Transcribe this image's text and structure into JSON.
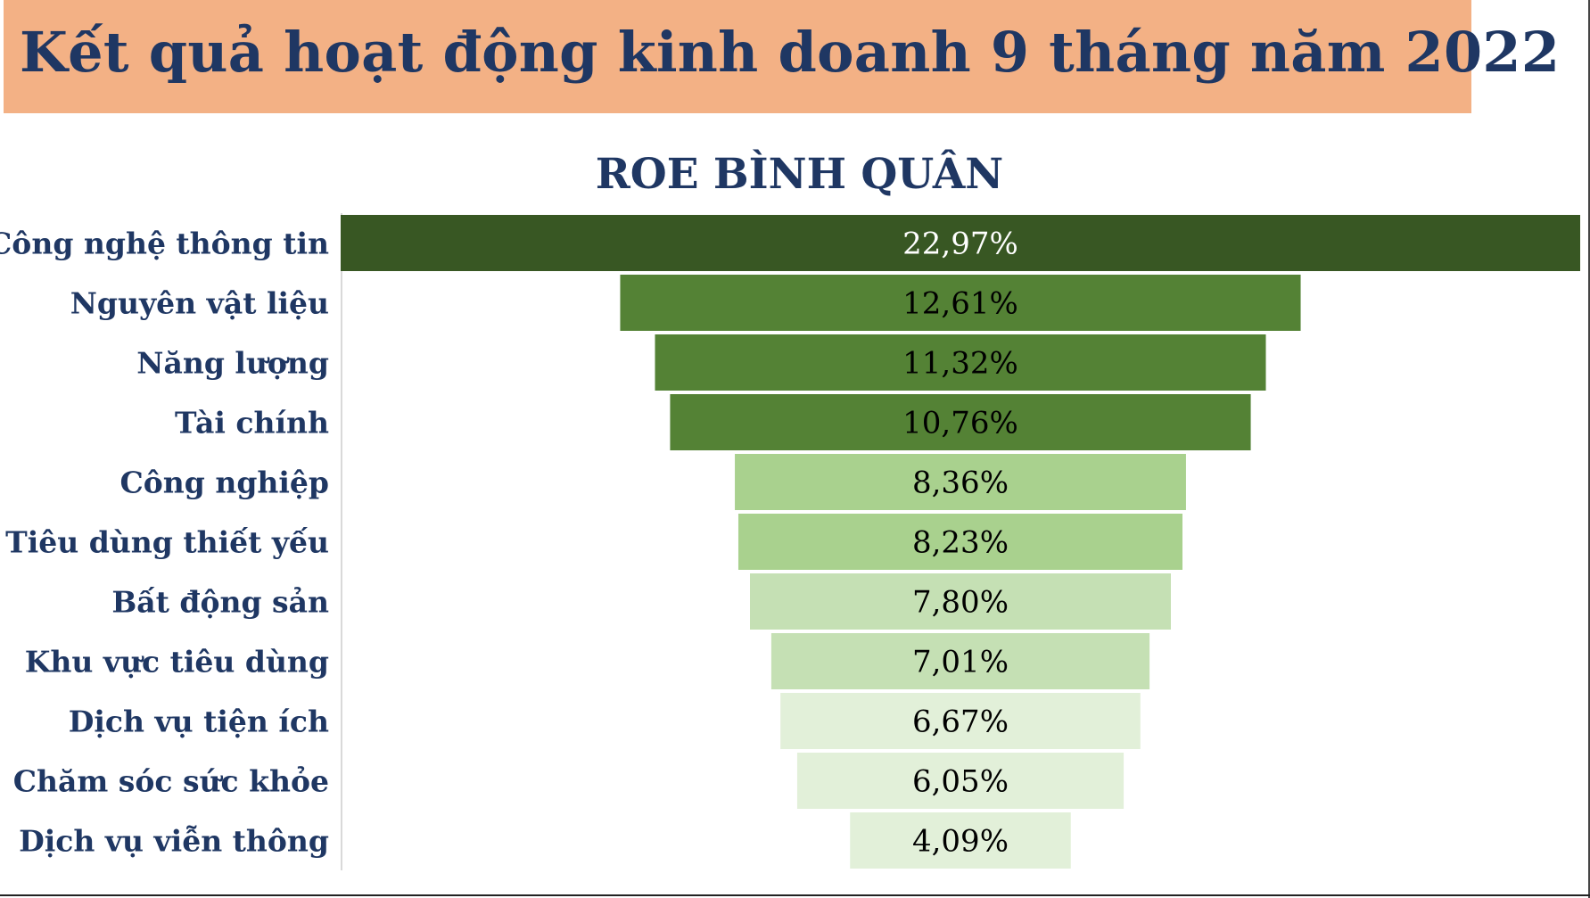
{
  "header": {
    "title": "Kết quả hoạt động kinh doanh 9 tháng năm 2022"
  },
  "chart_data": {
    "type": "bar",
    "orientation": "horizontal-funnel",
    "title": "ROE BÌNH QUÂN",
    "categories": [
      "Công nghệ thông tin",
      "Nguyên vật liệu",
      "Năng lượng",
      "Tài chính",
      "Công nghiệp",
      "Tiêu dùng thiết yếu",
      "Bất động sản",
      "Khu vực tiêu dùng",
      "Dịch vụ tiện ích",
      "Chăm sóc sức khỏe",
      "Dịch vụ viễn thông"
    ],
    "values": [
      22.97,
      12.61,
      11.32,
      10.76,
      8.36,
      8.23,
      7.8,
      7.01,
      6.67,
      6.05,
      4.09
    ],
    "value_labels": [
      "22,97%",
      "12,61%",
      "11,32%",
      "10,76%",
      "8,36%",
      "8,23%",
      "7,80%",
      "7,01%",
      "6,67%",
      "6,05%",
      "4,09%"
    ],
    "bar_colors": [
      "#385723",
      "#548235",
      "#548235",
      "#548235",
      "#a9d18e",
      "#a9d18e",
      "#c5e0b4",
      "#c5e0b4",
      "#e2f0d9",
      "#e2f0d9",
      "#e2f0d9"
    ],
    "label_colors": [
      "#ffffff",
      "#000000",
      "#000000",
      "#000000",
      "#000000",
      "#000000",
      "#000000",
      "#000000",
      "#000000",
      "#000000",
      "#000000"
    ],
    "xlabel": "",
    "ylabel": "",
    "grid": false,
    "legend": "none"
  },
  "colors": {
    "banner": "#f3b185",
    "title_text": "#1f3763"
  }
}
